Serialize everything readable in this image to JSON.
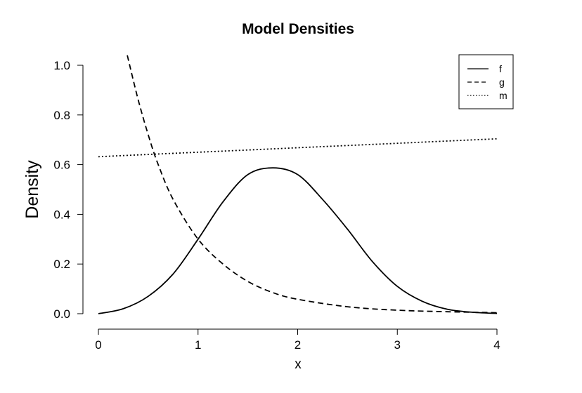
{
  "chart_data": {
    "type": "line",
    "title": "Model Densities",
    "xlabel": "x",
    "ylabel": "Density",
    "xlim": [
      0,
      4
    ],
    "ylim": [
      0,
      1.0
    ],
    "x_ticks": [
      "0",
      "1",
      "2",
      "3",
      "4"
    ],
    "y_ticks": [
      "0.0",
      "0.2",
      "0.4",
      "0.6",
      "0.8",
      "1.0"
    ],
    "grid": false,
    "legend_position": "top-right",
    "series": [
      {
        "name": "f",
        "line_style": "solid",
        "x": [
          0,
          0.25,
          0.5,
          0.75,
          1.0,
          1.25,
          1.5,
          1.75,
          2.0,
          2.25,
          2.5,
          2.75,
          3.0,
          3.25,
          3.5,
          3.75,
          4.0
        ],
        "y": [
          0.0,
          0.02,
          0.07,
          0.16,
          0.3,
          0.45,
          0.56,
          0.587,
          0.56,
          0.46,
          0.34,
          0.21,
          0.11,
          0.05,
          0.018,
          0.006,
          0.001
        ]
      },
      {
        "name": "g",
        "line_style": "dashed",
        "x": [
          0.29,
          0.4,
          0.5,
          0.6,
          0.75,
          1.0,
          1.25,
          1.5,
          1.75,
          2.0,
          2.5,
          3.0,
          3.5,
          4.0
        ],
        "y": [
          1.04,
          0.86,
          0.72,
          0.6,
          0.46,
          0.3,
          0.2,
          0.13,
          0.085,
          0.058,
          0.028,
          0.014,
          0.008,
          0.004
        ]
      },
      {
        "name": "m",
        "line_style": "dotted",
        "x": [
          0,
          1,
          2,
          3,
          4
        ],
        "y": [
          0.632,
          0.65,
          0.668,
          0.686,
          0.704
        ]
      }
    ]
  }
}
